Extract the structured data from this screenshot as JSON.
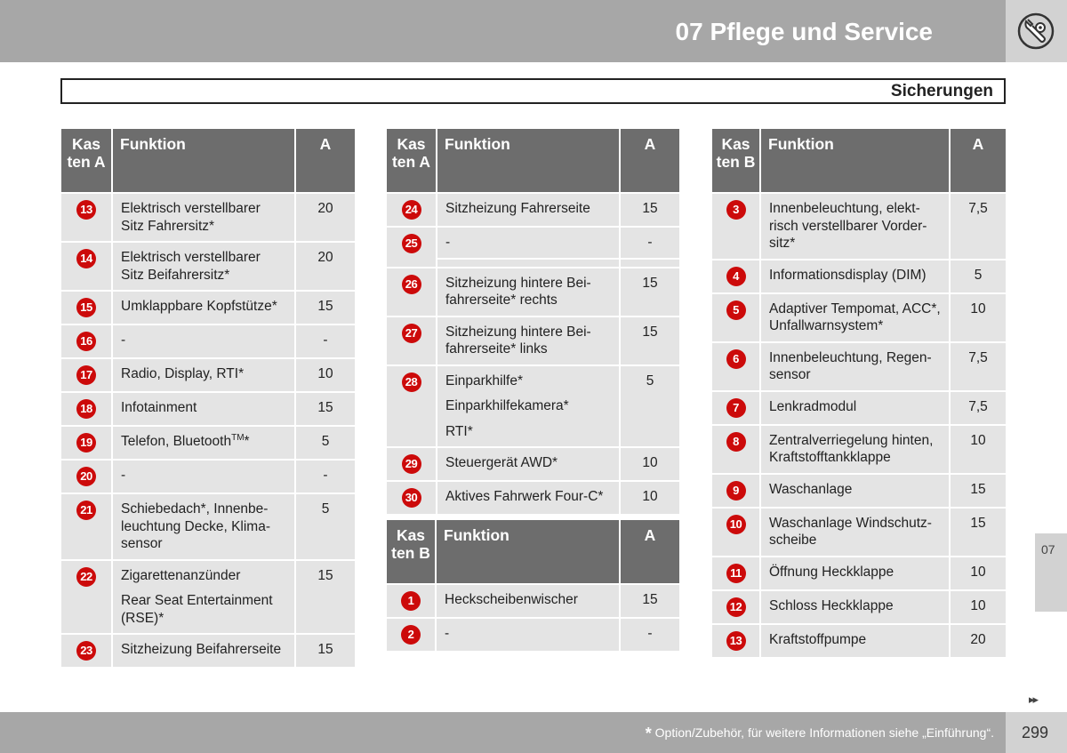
{
  "header": {
    "chapter_title": "07 Pflege und Service",
    "icon": "wrench-gear-icon",
    "section_title": "Sicherungen"
  },
  "table1": {
    "header": {
      "kasten": "Kas ten A",
      "funktion": "Funktion",
      "a": "A"
    },
    "rows": [
      {
        "num": "13",
        "func": "Elektrisch verstellbarer Sitz Fahrersitz*",
        "a": "20"
      },
      {
        "num": "14",
        "func": "Elektrisch verstellbarer Sitz Beifahrersitz*",
        "a": "20"
      },
      {
        "num": "15",
        "func": "Umklappbare Kopfstütze*",
        "a": "15"
      },
      {
        "num": "16",
        "func": "-",
        "a": "-"
      },
      {
        "num": "17",
        "func": "Radio, Display, RTI*",
        "a": "10"
      },
      {
        "num": "18",
        "func": "Infotainment",
        "a": "15"
      },
      {
        "num": "19",
        "func": "Telefon, Bluetooth",
        "func_sup": "TM",
        "func_tail": "*",
        "a": "5"
      },
      {
        "num": "20",
        "func": "-",
        "a": "-"
      },
      {
        "num": "21",
        "func": "Schiebedach*, Innenbe-leuchtung Decke, Klima-sensor",
        "a": "5"
      },
      {
        "num": "22",
        "func": "Zigarettenanzünder",
        "func2": "Rear Seat Entertainment (RSE)*",
        "a": "15"
      },
      {
        "num": "23",
        "func": "Sitzheizung Beifahrerseite",
        "a": "15"
      }
    ]
  },
  "table2": {
    "header": {
      "kasten": "Kas ten A",
      "funktion": "Funktion",
      "a": "A"
    },
    "rows": [
      {
        "num": "24",
        "func": "Sitzheizung Fahrerseite",
        "a": "15"
      },
      {
        "num": "25",
        "func": "-",
        "a": "-"
      },
      {
        "num": "26",
        "func": "Sitzheizung hintere Bei-fahrerseite* rechts",
        "a": "15"
      },
      {
        "num": "27",
        "func": "Sitzheizung hintere Bei-fahrerseite* links",
        "a": "15"
      },
      {
        "num": "28",
        "func": "Einparkhilfe*",
        "func2": "Einparkhilfekamera*",
        "func3": "RTI*",
        "a": "5"
      },
      {
        "num": "29",
        "func": "Steuergerät AWD*",
        "a": "10"
      },
      {
        "num": "30",
        "func": "Aktives Fahrwerk Four-C*",
        "a": "10"
      }
    ]
  },
  "table3": {
    "header": {
      "kasten": "Kas ten B",
      "funktion": "Funktion",
      "a": "A"
    },
    "rows": [
      {
        "num": "1",
        "func": "Heckscheibenwischer",
        "a": "15"
      },
      {
        "num": "2",
        "func": "-",
        "a": "-"
      }
    ]
  },
  "table4": {
    "header": {
      "kasten": "Kas ten B",
      "funktion": "Funktion",
      "a": "A"
    },
    "rows": [
      {
        "num": "3",
        "func": "Innenbeleuchtung, elekt-risch verstellbarer Vorder-sitz*",
        "a": "7,5"
      },
      {
        "num": "4",
        "func": "Informationsdisplay (DIM)",
        "a": "5"
      },
      {
        "num": "5",
        "func": "Adaptiver Tempomat, ACC*, Unfallwarnsystem*",
        "a": "10"
      },
      {
        "num": "6",
        "func": "Innenbeleuchtung, Regen-sensor",
        "a": "7,5"
      },
      {
        "num": "7",
        "func": "Lenkradmodul",
        "a": "7,5"
      },
      {
        "num": "8",
        "func": "Zentralverriegelung hinten, Kraftstofftankklappe",
        "a": "10"
      },
      {
        "num": "9",
        "func": "Waschanlage",
        "a": "15"
      },
      {
        "num": "10",
        "func": "Waschanlage Windschutz-scheibe",
        "a": "15"
      },
      {
        "num": "11",
        "func": "Öffnung Heckklappe",
        "a": "10"
      },
      {
        "num": "12",
        "func": "Schloss Heckklappe",
        "a": "10"
      },
      {
        "num": "13",
        "func": "Kraftstoffpumpe",
        "a": "20"
      }
    ]
  },
  "side_tab": "07",
  "continue_arrows": "▸▸",
  "footer": {
    "star": "*",
    "note": " Option/Zubehör, für weitere Informationen siehe „Einführung“.",
    "page_number": "299"
  }
}
